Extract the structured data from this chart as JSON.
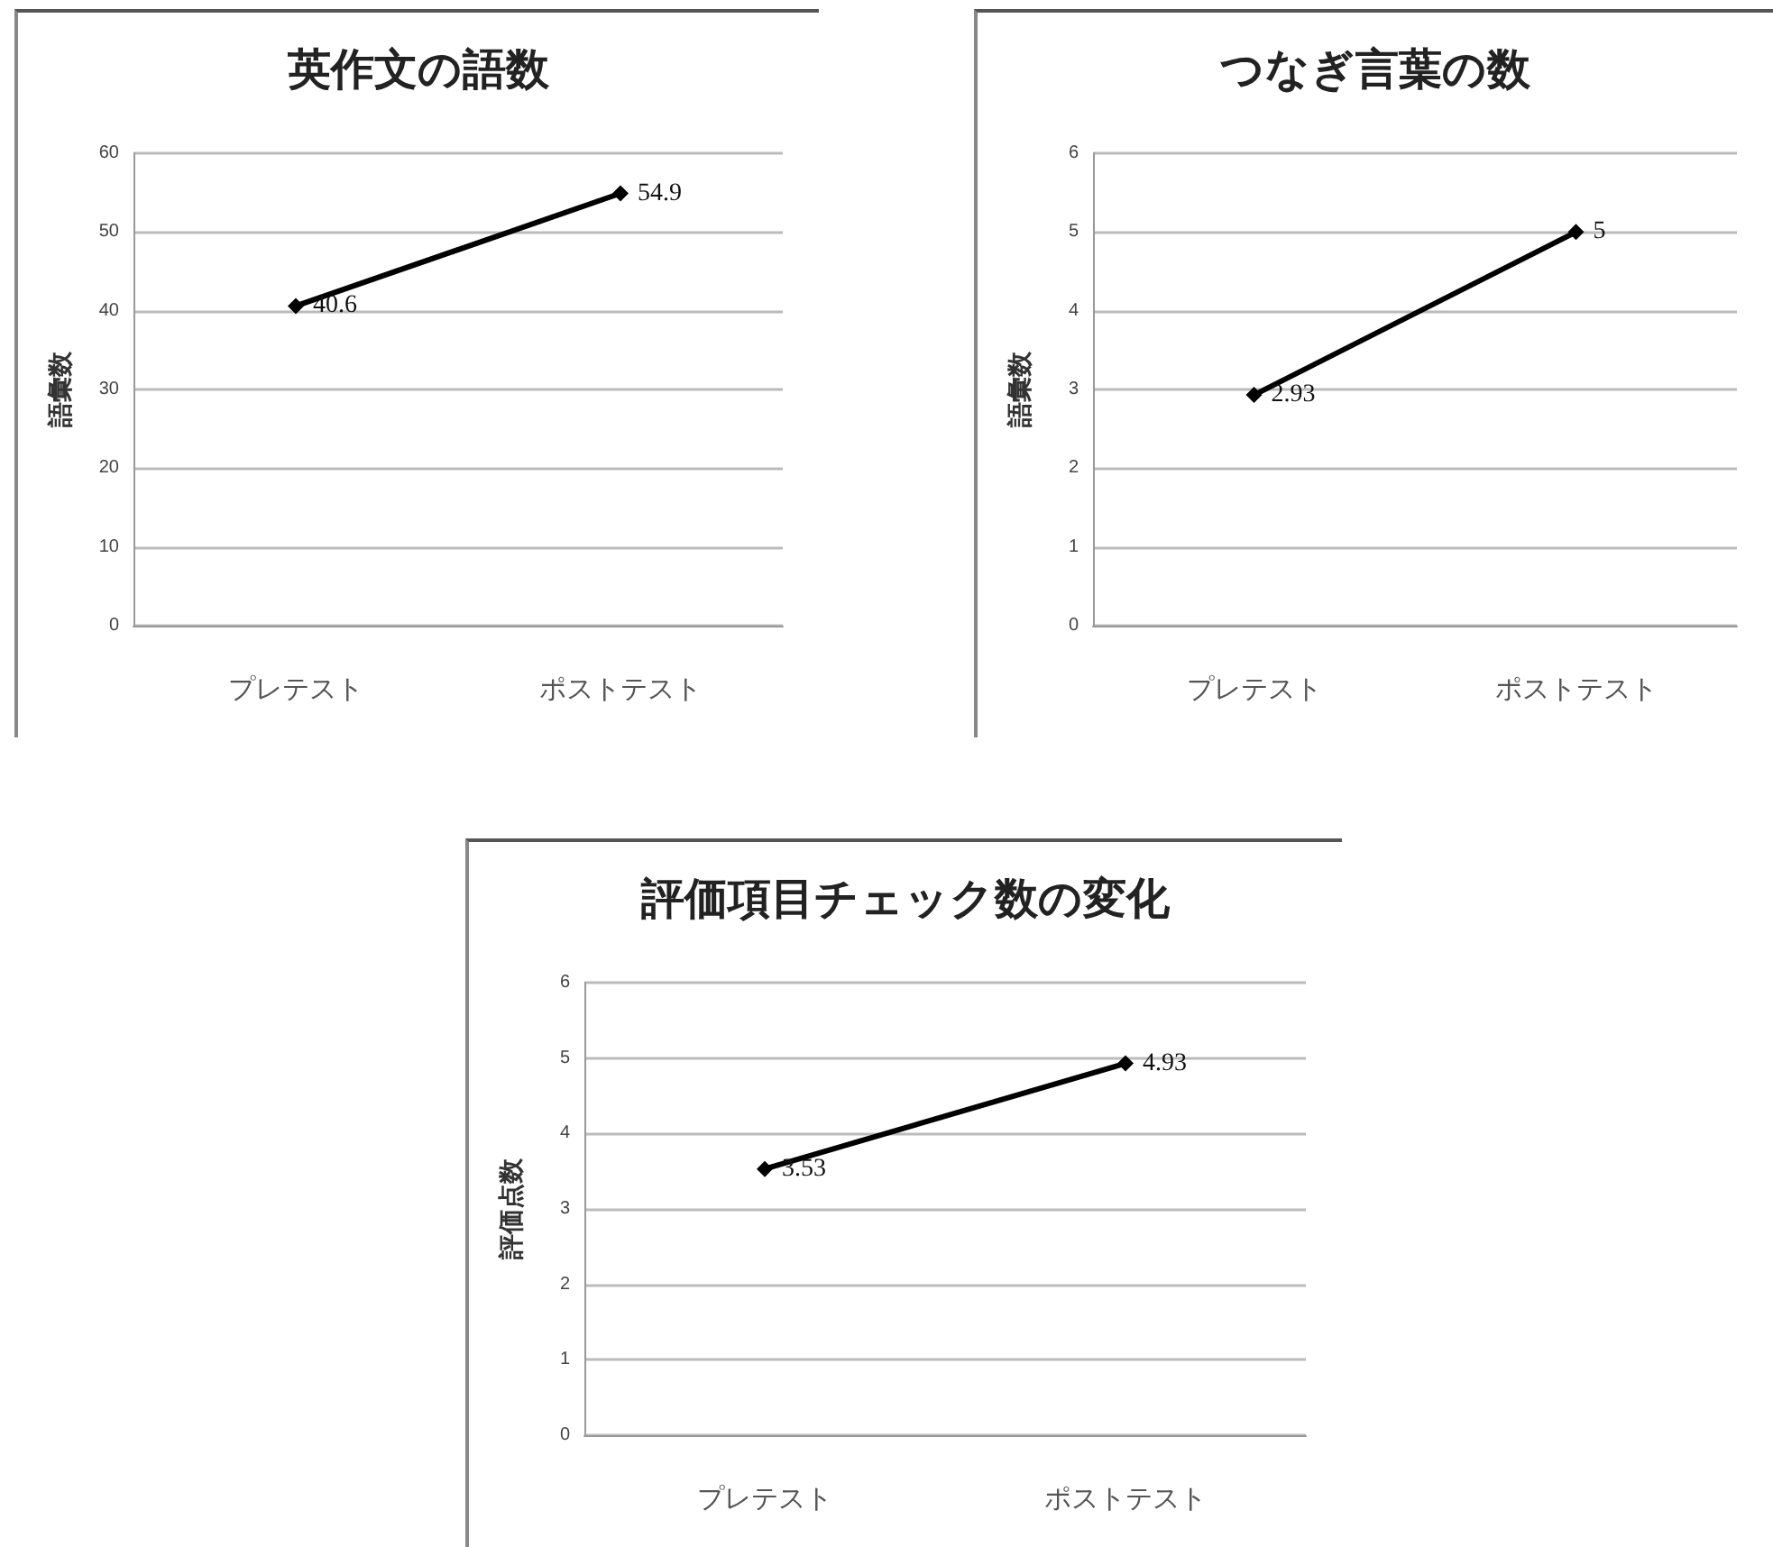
{
  "chart_data": [
    {
      "type": "line",
      "title": "英作文の語数",
      "ylabel": "語彙数",
      "categories": [
        "プレテスト",
        "ポストテスト"
      ],
      "series": [
        {
          "color": "#000000",
          "values": [
            40.6,
            54.9
          ]
        }
      ],
      "ylim": [
        0,
        60
      ],
      "yticks": [
        0,
        10,
        20,
        30,
        40,
        50,
        60
      ],
      "grid": "y",
      "marker": "diamond",
      "data_labels": true
    },
    {
      "type": "line",
      "title": "つなぎ言葉の数",
      "ylabel": "語彙数",
      "categories": [
        "プレテスト",
        "ポストテスト"
      ],
      "series": [
        {
          "color": "#000000",
          "values": [
            2.93,
            5
          ]
        }
      ],
      "ylim": [
        0,
        6
      ],
      "yticks": [
        0,
        1,
        2,
        3,
        4,
        5,
        6
      ],
      "grid": "y",
      "marker": "diamond",
      "data_labels": true
    },
    {
      "type": "line",
      "title": "評価項目チェック数の変化",
      "ylabel": "評価点数",
      "categories": [
        "プレテスト",
        "ポストテスト"
      ],
      "series": [
        {
          "color": "#000000",
          "values": [
            3.53,
            4.93
          ]
        }
      ],
      "ylim": [
        0,
        6
      ],
      "yticks": [
        0,
        1,
        2,
        3,
        4,
        5,
        6
      ],
      "grid": "y",
      "marker": "diamond",
      "data_labels": true
    }
  ]
}
